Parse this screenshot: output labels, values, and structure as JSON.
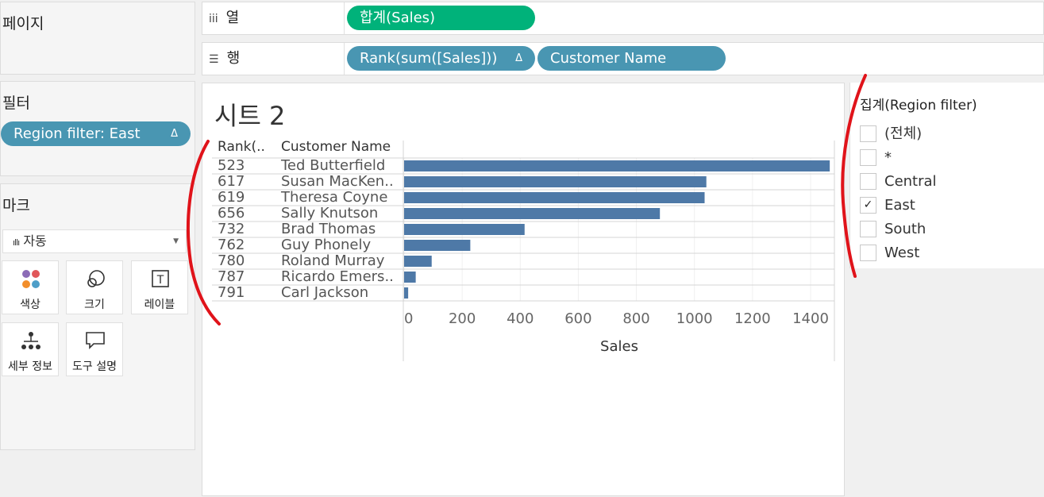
{
  "left": {
    "pages_title": "페이지",
    "filters_title": "필터",
    "filter_pill": "Region filter: East",
    "filter_pill_delta": "Δ",
    "marks_title": "마크",
    "mark_type_icon": "bar-chart-icon",
    "mark_type": "자동",
    "mark_buttons": [
      {
        "label": "색상",
        "icon": "color-dots-icon"
      },
      {
        "label": "크기",
        "icon": "size-circles-icon"
      },
      {
        "label": "레이블",
        "icon": "text-label-icon"
      },
      {
        "label": "세부 정보",
        "icon": "detail-tree-icon"
      },
      {
        "label": "도구 설명",
        "icon": "tooltip-bubble-icon"
      }
    ]
  },
  "shelves": {
    "columns_label": "열",
    "columns_pill": "합계(Sales)",
    "rows_label": "행",
    "rows_pill_1": "Rank(sum([Sales]))",
    "rows_pill_1_delta": "Δ",
    "rows_pill_2": "Customer Name"
  },
  "sheet": {
    "title": "시트 2"
  },
  "chart_data": {
    "type": "bar",
    "orientation": "horizontal",
    "row_headers": [
      "Rank(..",
      "Customer Name"
    ],
    "categories": [
      "Ted Butterfield",
      "Susan MacKen..",
      "Theresa Coyne",
      "Sally Knutson",
      "Brad Thomas",
      "Guy Phonely",
      "Roland Murray",
      "Ricardo Emers..",
      "Carl Jackson"
    ],
    "ranks": [
      "523",
      "617",
      "619",
      "656",
      "732",
      "762",
      "780",
      "787",
      "791"
    ],
    "values": [
      1466,
      1041,
      1035,
      881,
      415,
      228,
      95,
      40,
      14
    ],
    "xlabel": "Sales",
    "xticks": [
      0,
      200,
      400,
      600,
      800,
      1000,
      1200,
      1400
    ],
    "xlim": [
      0,
      1520
    ],
    "bar_color": "#4e79a7",
    "grid": true
  },
  "filter_card": {
    "title": "집계(Region filter)",
    "items": [
      {
        "label": "(전체)",
        "checked": false
      },
      {
        "label": "*",
        "checked": false
      },
      {
        "label": "Central",
        "checked": false
      },
      {
        "label": "East",
        "checked": true
      },
      {
        "label": "South",
        "checked": false
      },
      {
        "label": "West",
        "checked": false
      }
    ]
  },
  "colors": {
    "green_pill": "#00b27a",
    "blue_pill": "#4996b2",
    "annotation_red": "#e0131a"
  }
}
